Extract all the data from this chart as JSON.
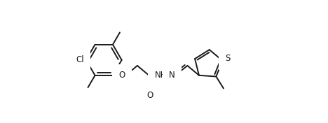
{
  "bg_color": "#ffffff",
  "line_color": "#1a1a1a",
  "lw": 1.4,
  "fs": 8.5,
  "figsize": [
    4.68,
    1.76
  ],
  "dpi": 100,
  "xlim": [
    0,
    468
  ],
  "ylim": [
    0,
    176
  ]
}
